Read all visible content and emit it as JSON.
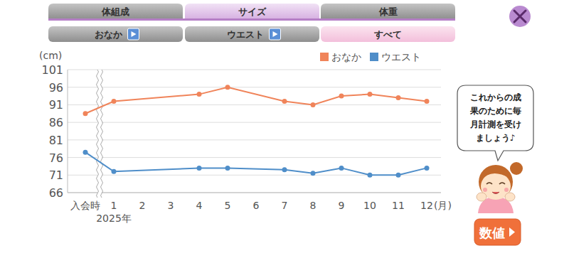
{
  "page": {
    "tabs": [
      {
        "label": "体組成",
        "selected": false
      },
      {
        "label": "サイズ",
        "selected": true
      },
      {
        "label": "体重",
        "selected": false
      }
    ],
    "subtabs": [
      {
        "label": "おなか",
        "selected": false
      },
      {
        "label": "ウエスト",
        "selected": false
      },
      {
        "label": "すべて",
        "selected": true
      }
    ],
    "bubble": [
      "これからの成",
      "果のために毎",
      "月計測を受け",
      "ましょう♪"
    ],
    "button": "数値"
  },
  "chart_data": {
    "type": "line",
    "y_label": "(cm)",
    "x_label": "(月)",
    "annotations": [
      {
        "x": 1,
        "text": "2025年"
      }
    ],
    "x": [
      0,
      1,
      4,
      5,
      7,
      8,
      9,
      10,
      11,
      12
    ],
    "xlim": [
      -0.625,
      12.5
    ],
    "xticks": [
      {
        "value": 0,
        "label": "入会時"
      },
      1,
      2,
      3,
      4,
      5,
      6,
      7,
      8,
      9,
      10,
      11,
      12
    ],
    "ylim": [
      66,
      101
    ],
    "yticks": [
      66,
      71,
      76,
      81,
      86,
      91,
      96,
      101
    ],
    "grid": true,
    "legend": "top-right",
    "series": [
      {
        "name": "おなか",
        "color": "#f0845a",
        "marker": "circle",
        "values": [
          88.5,
          92,
          94,
          96,
          92,
          91,
          93.5,
          94,
          93,
          92
        ]
      },
      {
        "name": "ウエスト",
        "color": "#4f8ec9",
        "marker": "circle",
        "values": [
          77.5,
          72,
          73,
          73,
          72.5,
          71.5,
          73,
          71,
          71,
          73
        ]
      }
    ]
  }
}
